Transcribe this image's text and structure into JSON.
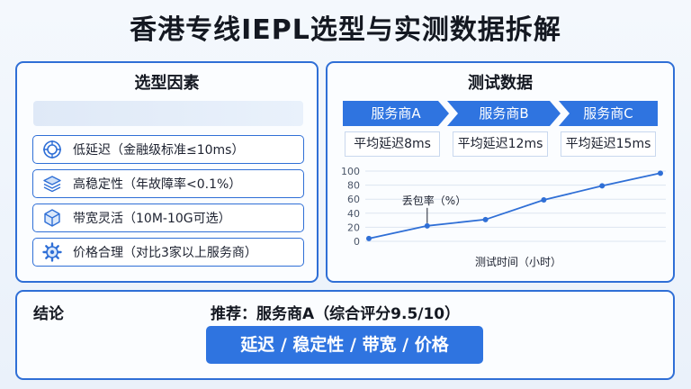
{
  "title": "香港专线IEPL选型与实测数据拆解",
  "left_panel": {
    "title": "选型因素",
    "factors": [
      {
        "label": "低延迟（金融级标准≤10ms）",
        "icon": "target-icon"
      },
      {
        "label": "高稳定性（年故障率<0.1%）",
        "icon": "layers-icon"
      },
      {
        "label": "带宽灵活（10M-10G可选）",
        "icon": "cube-icon"
      },
      {
        "label": "价格合理（对比3家以上服务商）",
        "icon": "gear-icon"
      }
    ]
  },
  "right_panel": {
    "title": "测试数据",
    "vendors": [
      "服务商A",
      "服务商B",
      "服务商C"
    ],
    "latencies": [
      "平均延迟8ms",
      "平均延迟12ms",
      "平均延迟15ms"
    ]
  },
  "chart_data": {
    "type": "line",
    "xlabel": "测试时间（小时）",
    "ylabel": "",
    "annotation": "丢包率（%）",
    "yticks": [
      0,
      20,
      40,
      60,
      80,
      100
    ],
    "ylim": [
      0,
      100
    ],
    "series": [
      {
        "values": [
          4,
          22,
          31,
          59,
          79,
          97
        ]
      }
    ],
    "grid": true,
    "colors": {
      "line": "#2f6fd6",
      "grid": "#dde5f0"
    }
  },
  "conclusion": {
    "label": "结论",
    "recommendation": "推荐：服务商A（综合评分9.5/10）",
    "criteria": "延迟 / 稳定性 / 带宽 / 价格"
  },
  "colors": {
    "accent": "#2f74e0",
    "border": "#2f6fd6"
  }
}
